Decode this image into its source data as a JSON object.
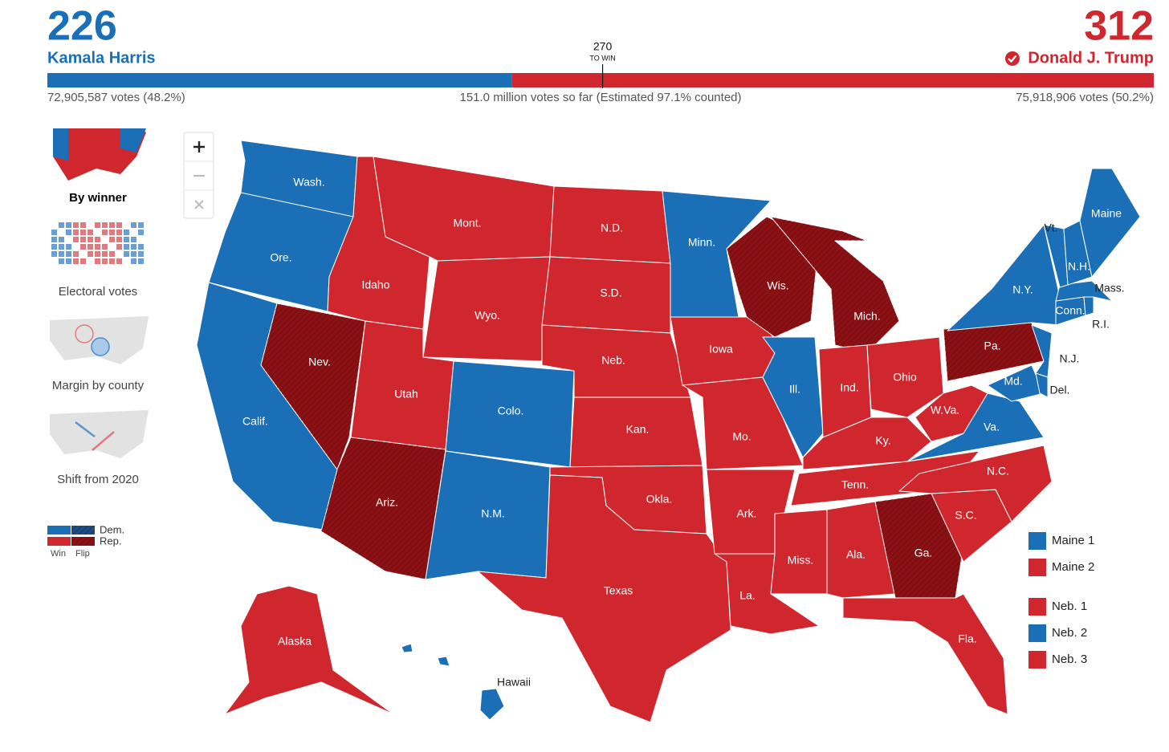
{
  "header": {
    "dem": {
      "electoral_votes": 226,
      "name": "Kamala Harris",
      "votes": "72,905,587 votes (48.2%)"
    },
    "rep": {
      "electoral_votes": 312,
      "name": "Donald J. Trump",
      "votes": "75,918,906 votes (50.2%)"
    },
    "threshold": {
      "value": 270,
      "label": "TO WIN"
    },
    "total": "151.0 million votes so far (Estimated 97.1% counted)"
  },
  "colors": {
    "dem": "#1a6fb6",
    "rep": "#d0272e",
    "rep_flip": "#8c1114"
  },
  "views": [
    "By winner",
    "Electoral votes",
    "Margin by county",
    "Shift from 2020"
  ],
  "legend": {
    "parties": [
      "Dem.",
      "Rep."
    ],
    "kinds": [
      "Win",
      "Flip"
    ]
  },
  "states": [
    {
      "label": "Wash.",
      "winner": "dem",
      "flip": false
    },
    {
      "label": "Ore.",
      "winner": "dem",
      "flip": false
    },
    {
      "label": "Calif.",
      "winner": "dem",
      "flip": false
    },
    {
      "label": "Nev.",
      "winner": "rep",
      "flip": true
    },
    {
      "label": "Idaho",
      "winner": "rep",
      "flip": false
    },
    {
      "label": "Mont.",
      "winner": "rep",
      "flip": false
    },
    {
      "label": "Wyo.",
      "winner": "rep",
      "flip": false
    },
    {
      "label": "Utah",
      "winner": "rep",
      "flip": false
    },
    {
      "label": "Ariz.",
      "winner": "rep",
      "flip": true
    },
    {
      "label": "Colo.",
      "winner": "dem",
      "flip": false
    },
    {
      "label": "N.M.",
      "winner": "dem",
      "flip": false
    },
    {
      "label": "N.D.",
      "winner": "rep",
      "flip": false
    },
    {
      "label": "S.D.",
      "winner": "rep",
      "flip": false
    },
    {
      "label": "Neb.",
      "winner": "rep",
      "flip": false
    },
    {
      "label": "Kan.",
      "winner": "rep",
      "flip": false
    },
    {
      "label": "Okla.",
      "winner": "rep",
      "flip": false
    },
    {
      "label": "Texas",
      "winner": "rep",
      "flip": false
    },
    {
      "label": "Minn.",
      "winner": "dem",
      "flip": false
    },
    {
      "label": "Iowa",
      "winner": "rep",
      "flip": false
    },
    {
      "label": "Mo.",
      "winner": "rep",
      "flip": false
    },
    {
      "label": "Ark.",
      "winner": "rep",
      "flip": false
    },
    {
      "label": "La.",
      "winner": "rep",
      "flip": false
    },
    {
      "label": "Wis.",
      "winner": "rep",
      "flip": true
    },
    {
      "label": "Ill.",
      "winner": "dem",
      "flip": false
    },
    {
      "label": "Mich.",
      "winner": "rep",
      "flip": true
    },
    {
      "label": "Ind.",
      "winner": "rep",
      "flip": false
    },
    {
      "label": "Ohio",
      "winner": "rep",
      "flip": false
    },
    {
      "label": "Ky.",
      "winner": "rep",
      "flip": false
    },
    {
      "label": "Tenn.",
      "winner": "rep",
      "flip": false
    },
    {
      "label": "Miss.",
      "winner": "rep",
      "flip": false
    },
    {
      "label": "Ala.",
      "winner": "rep",
      "flip": false
    },
    {
      "label": "Ga.",
      "winner": "rep",
      "flip": true
    },
    {
      "label": "Fla.",
      "winner": "rep",
      "flip": false
    },
    {
      "label": "S.C.",
      "winner": "rep",
      "flip": false
    },
    {
      "label": "N.C.",
      "winner": "rep",
      "flip": false
    },
    {
      "label": "Va.",
      "winner": "dem",
      "flip": false
    },
    {
      "label": "W.Va.",
      "winner": "rep",
      "flip": false
    },
    {
      "label": "Pa.",
      "winner": "rep",
      "flip": true
    },
    {
      "label": "N.Y.",
      "winner": "dem",
      "flip": false
    },
    {
      "label": "N.J.",
      "winner": "dem",
      "flip": false
    },
    {
      "label": "Md.",
      "winner": "dem",
      "flip": false
    },
    {
      "label": "Del.",
      "winner": "dem",
      "flip": false
    },
    {
      "label": "Conn.",
      "winner": "dem",
      "flip": false
    },
    {
      "label": "R.I.",
      "winner": "dem",
      "flip": false
    },
    {
      "label": "Mass.",
      "winner": "dem",
      "flip": false
    },
    {
      "label": "Vt.",
      "winner": "dem",
      "flip": false
    },
    {
      "label": "N.H.",
      "winner": "dem",
      "flip": false
    },
    {
      "label": "Maine",
      "winner": "dem",
      "flip": false
    },
    {
      "label": "Alaska",
      "winner": "rep",
      "flip": false
    },
    {
      "label": "Hawaii",
      "winner": "dem",
      "flip": false
    }
  ],
  "districts": [
    {
      "label": "Maine 1",
      "winner": "dem"
    },
    {
      "label": "Maine 2",
      "winner": "rep"
    },
    {
      "label": "Neb. 1",
      "winner": "rep"
    },
    {
      "label": "Neb. 2",
      "winner": "dem"
    },
    {
      "label": "Neb. 3",
      "winner": "rep"
    }
  ]
}
